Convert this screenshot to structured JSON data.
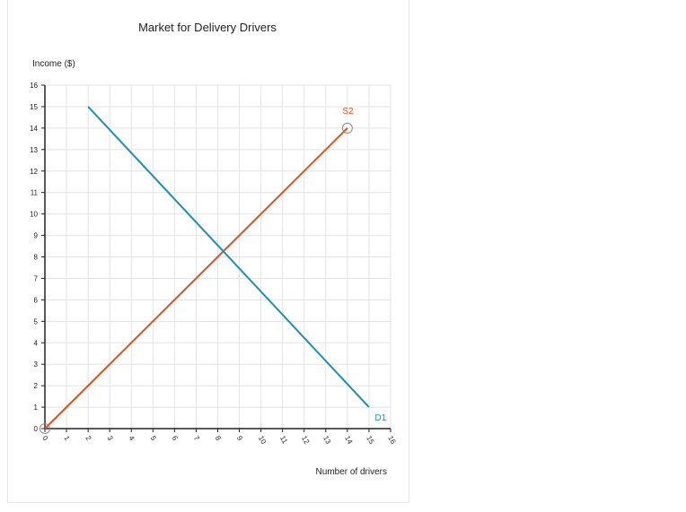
{
  "chart_data": {
    "type": "line",
    "title": "Market for Delivery Drivers",
    "xlabel": "Number of drivers",
    "ylabel": "Income ($)",
    "xlim": [
      0,
      16
    ],
    "ylim": [
      0,
      16
    ],
    "x_ticks": [
      "0",
      "1",
      "2",
      "3",
      "4",
      "5",
      "6",
      "7",
      "8",
      "9",
      "10",
      "11",
      "12",
      "13",
      "14",
      "15",
      "16"
    ],
    "y_ticks": [
      "0",
      "1",
      "2",
      "3",
      "4",
      "5",
      "6",
      "7",
      "8",
      "9",
      "10",
      "11",
      "12",
      "13",
      "14",
      "15",
      "16"
    ],
    "grid": true,
    "series": [
      {
        "name": "S2",
        "color": "#d9541e",
        "points": [
          [
            0,
            0
          ],
          [
            14,
            14
          ]
        ],
        "endpoint_handles": true
      },
      {
        "name": "D1",
        "color": "#1f8fb0",
        "points": [
          [
            2,
            15
          ],
          [
            15,
            1
          ]
        ],
        "endpoint_handles": false
      }
    ]
  }
}
